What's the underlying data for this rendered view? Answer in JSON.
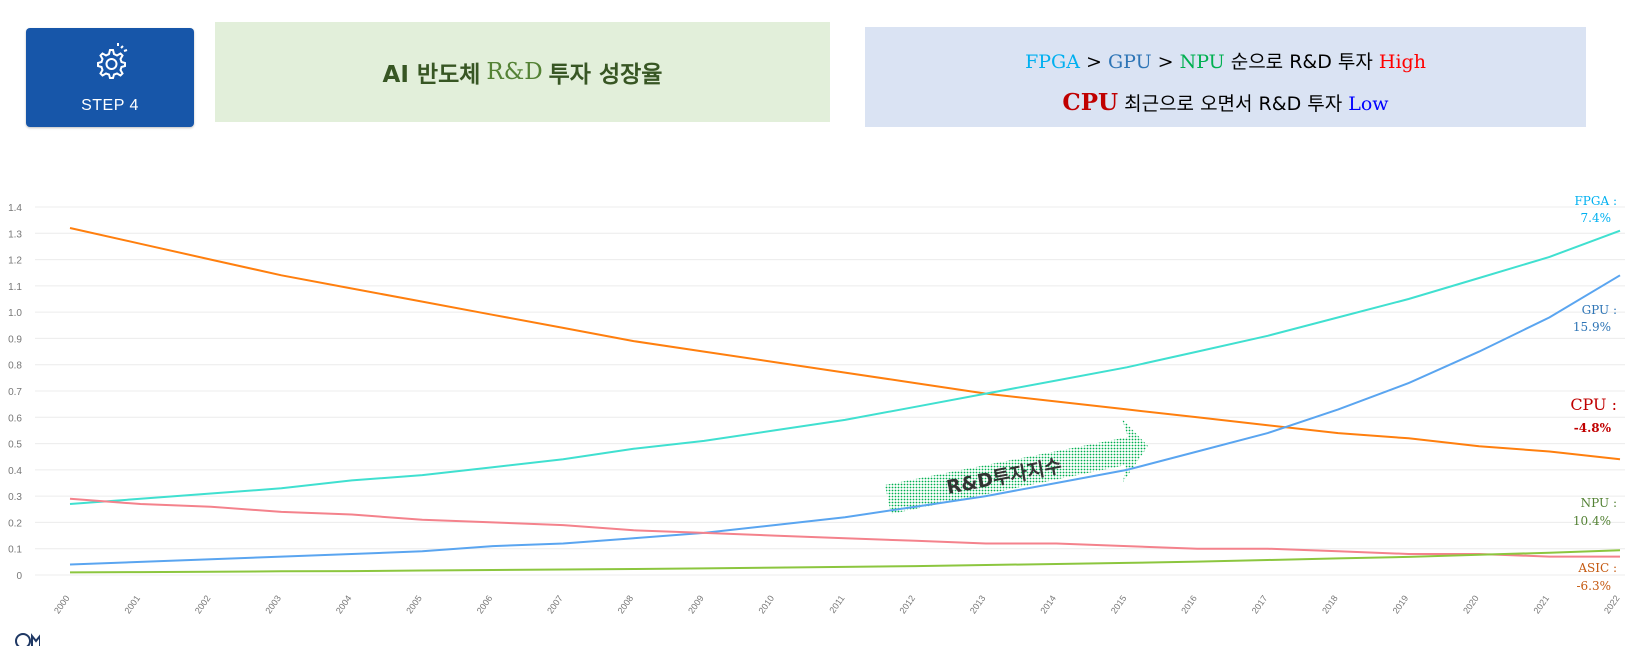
{
  "step": {
    "label": "STEP 4",
    "icon": "gear-icon"
  },
  "title": {
    "part1": "AI 반도체",
    "part2": "R&D",
    "part3": "투자 성장율"
  },
  "summary": {
    "line1": {
      "fpga": "FPGA",
      "gt1": " > ",
      "gpu": "GPU",
      "gt2": "  > ",
      "npu": "NPU",
      "mid": " 순으로 R&D 투자 ",
      "high": "High"
    },
    "line2": {
      "cpu": "CPU",
      "mid": " 최근으로 오면서 R&D 투자 ",
      "low": "Low"
    }
  },
  "chart_data": {
    "type": "line",
    "x": [
      "2000",
      "2001",
      "2002",
      "2003",
      "2004",
      "2005",
      "2006",
      "2007",
      "2008",
      "2009",
      "2010",
      "2011",
      "2012",
      "2013",
      "2014",
      "2015",
      "2016",
      "2017",
      "2018",
      "2019",
      "2020",
      "2021",
      "2022"
    ],
    "yticks": [
      "0",
      "0.1",
      "0.2",
      "0.3",
      "0.4",
      "0.5",
      "0.6",
      "0.7",
      "0.8",
      "0.9",
      "1.0",
      "1.1",
      "1.2",
      "1.3",
      "1.4"
    ],
    "ylim": [
      0,
      1.4
    ],
    "grid": true,
    "series": [
      {
        "name": "CPU",
        "color": "#ff7f0e",
        "values": [
          1.32,
          1.26,
          1.2,
          1.14,
          1.09,
          1.04,
          0.99,
          0.94,
          0.89,
          0.85,
          0.81,
          0.77,
          0.73,
          0.69,
          0.66,
          0.63,
          0.6,
          0.57,
          0.54,
          0.52,
          0.49,
          0.47,
          0.44
        ]
      },
      {
        "name": "FPGA",
        "color": "#40e0d0",
        "values": [
          0.27,
          0.29,
          0.31,
          0.33,
          0.36,
          0.38,
          0.41,
          0.44,
          0.48,
          0.51,
          0.55,
          0.59,
          0.64,
          0.69,
          0.74,
          0.79,
          0.85,
          0.91,
          0.98,
          1.05,
          1.13,
          1.21,
          1.31
        ]
      },
      {
        "name": "GPU",
        "color": "#5aa5f0",
        "values": [
          0.04,
          0.05,
          0.06,
          0.07,
          0.08,
          0.09,
          0.11,
          0.12,
          0.14,
          0.16,
          0.19,
          0.22,
          0.26,
          0.3,
          0.35,
          0.4,
          0.47,
          0.54,
          0.63,
          0.73,
          0.85,
          0.98,
          1.14
        ]
      },
      {
        "name": "ASIC",
        "color": "#f4828c",
        "values": [
          0.29,
          0.27,
          0.26,
          0.24,
          0.23,
          0.21,
          0.2,
          0.19,
          0.17,
          0.16,
          0.15,
          0.14,
          0.13,
          0.12,
          0.12,
          0.11,
          0.1,
          0.1,
          0.09,
          0.08,
          0.08,
          0.07,
          0.07
        ]
      },
      {
        "name": "NPU",
        "color": "#8cc63f",
        "values": [
          0.01,
          0.011,
          0.012,
          0.014,
          0.015,
          0.017,
          0.019,
          0.021,
          0.023,
          0.025,
          0.028,
          0.031,
          0.034,
          0.038,
          0.042,
          0.046,
          0.051,
          0.057,
          0.063,
          0.069,
          0.077,
          0.085,
          0.094
        ]
      }
    ],
    "annotations": [
      {
        "name": "fpga",
        "label": "FPGA :",
        "value": "7.4%",
        "color": "#00b0f0"
      },
      {
        "name": "gpu",
        "label": "GPU :",
        "value": "15.9%",
        "color": "#2e75b6"
      },
      {
        "name": "cpu",
        "label": "CPU :",
        "value": "-4.8%",
        "color": "#c00000"
      },
      {
        "name": "npu",
        "label": "NPU :",
        "value": "10.4%",
        "color": "#548235"
      },
      {
        "name": "asic",
        "label": "ASIC :",
        "value": "-6.3%",
        "color": "#c55a11"
      }
    ],
    "arrow_label": "R&D투자지수"
  }
}
